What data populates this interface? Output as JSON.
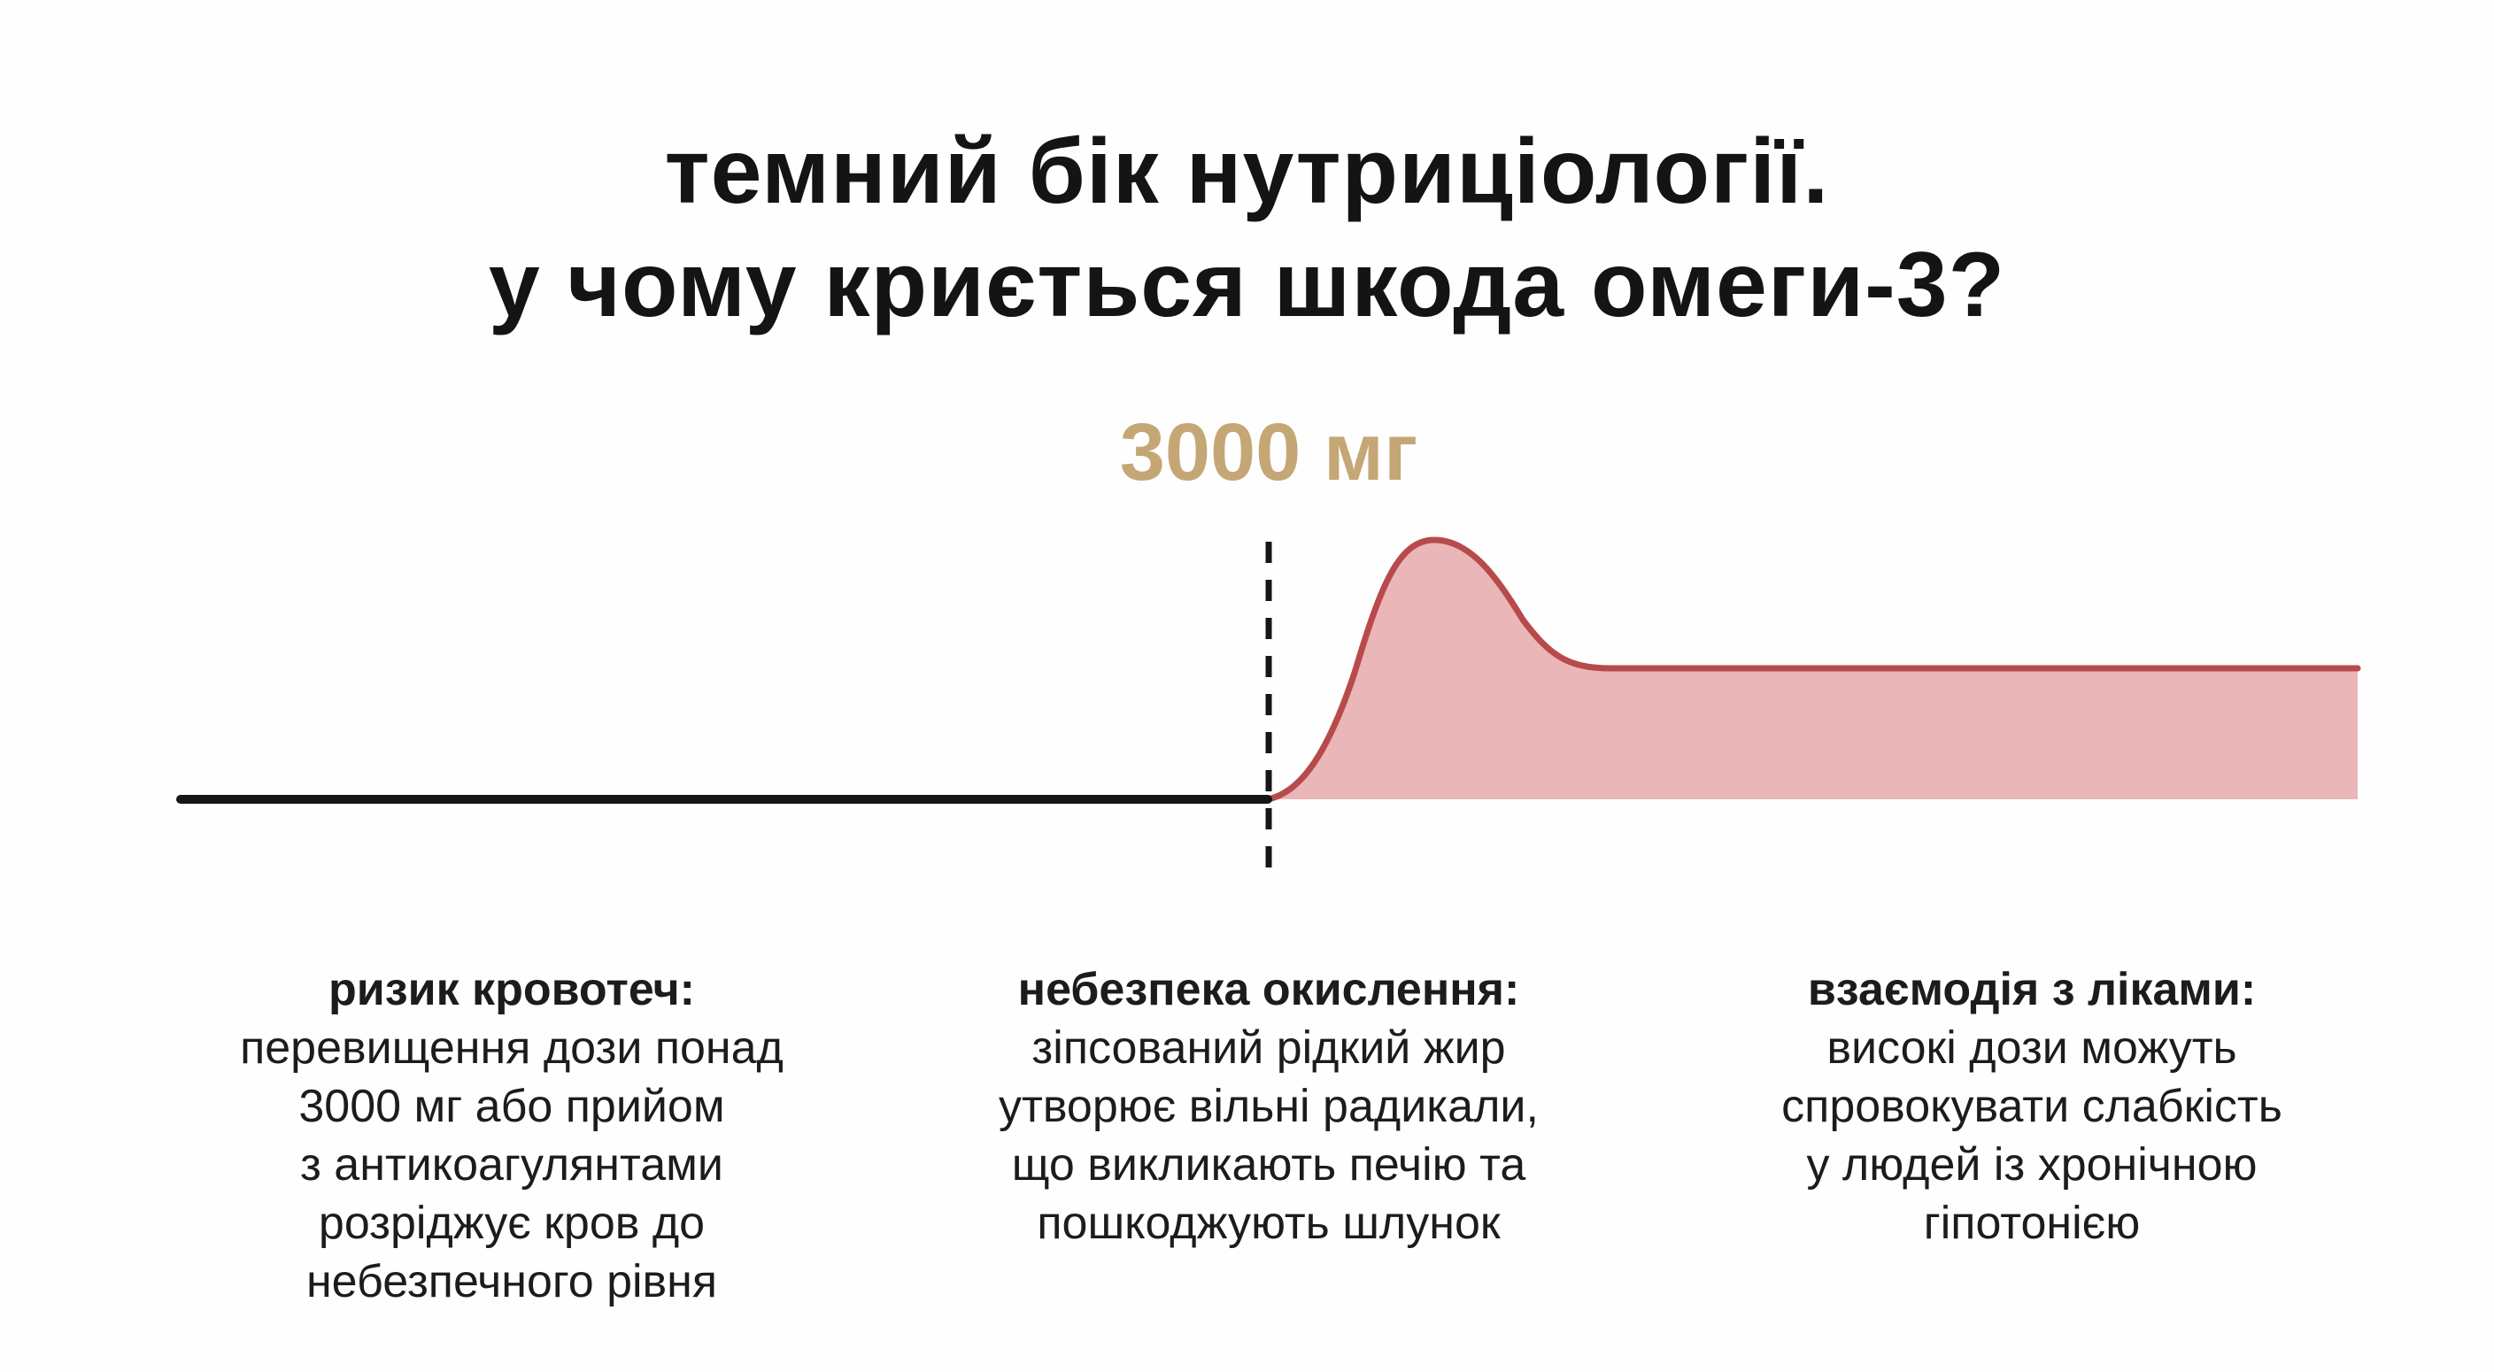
{
  "title": {
    "line1": "темний бік нутриціології.",
    "line2": "у чому криється шкода омеги-3?"
  },
  "diagram": {
    "threshold_label": "3000 мг",
    "colors": {
      "threshold_label": "#c4a774",
      "baseline": "#161616",
      "risk_line": "#b84a4c",
      "risk_fill": "#e9b2b3"
    }
  },
  "captions": [
    {
      "title": "ризик кровотеч:",
      "body": "перевищення дози понад\n3000 мг або прийом\nз антикоагулянтами\nрозріджує кров до\nнебезпечного рівня"
    },
    {
      "title": "небезпека окислення:",
      "body": "зіпсований рідкий жир\nутворює вільні радикали,\nщо викликають печію та\nпошкоджують шлунок"
    },
    {
      "title": "взаємодія з ліками:",
      "body": "високі дози можуть\nспровокувати слабкість\nу людей із хронічною\nгіпотонією"
    }
  ]
}
